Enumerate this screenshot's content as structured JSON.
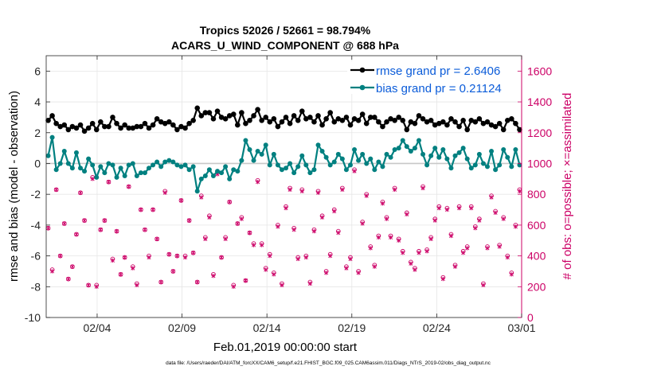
{
  "chart_data": {
    "type": "line",
    "title_line1": "Tropics 52026 / 52661 = 98.794%",
    "title_line2": "ACARS_U_WIND_COMPONENT @ 688 hPa",
    "xlabel": "Feb.01,2019 00:00:00 start",
    "ylabel_left": "rmse and bias (model - observation)",
    "ylabel_right": "# of obs: o=possible; ×=assimilated",
    "footer": "data file: /Users/raeder/DAI/ATM_forcXX/CAM6_setup/f.e21.FHIST_BGC.f09_025.CAM6assim.011/Diags_NTrS_2019-02/obs_diag_output.nc",
    "x_ticks": [
      "02/04",
      "02/09",
      "02/14",
      "02/19",
      "02/24",
      "03/01"
    ],
    "x_tick_values": [
      4,
      9,
      14,
      19,
      24,
      29
    ],
    "xlim": [
      1,
      29
    ],
    "y_left_ticks": [
      "6",
      "4",
      "2",
      "0",
      "-2",
      "-4",
      "-6",
      "-8",
      "-10"
    ],
    "y_left_tick_values": [
      6,
      4,
      2,
      0,
      -2,
      -4,
      -6,
      -8,
      -10
    ],
    "ylim_left": [
      -10,
      7
    ],
    "y_right_ticks": [
      "1600",
      "1400",
      "1200",
      "1000",
      "800",
      "600",
      "400",
      "200",
      "0"
    ],
    "y_right_tick_values": [
      1600,
      1400,
      1200,
      1000,
      800,
      600,
      400,
      200,
      0
    ],
    "ylim_right": [
      0,
      1700
    ],
    "legend": [
      {
        "name": "rmse grand pr = 2.6406",
        "color": "#000000"
      },
      {
        "name": "bias grand pr = 0.21124",
        "color": "#008080"
      }
    ],
    "series": [
      {
        "name": "rmse",
        "color": "#000000",
        "values": [
          2.8,
          3.1,
          2.6,
          2.4,
          2.5,
          2.2,
          2.4,
          2.3,
          2.5,
          2.1,
          2.3,
          2.6,
          2.2,
          2.7,
          2.4,
          2.4,
          3.0,
          2.6,
          2.3,
          2.5,
          2.3,
          2.3,
          2.4,
          2.4,
          2.6,
          2.3,
          2.5,
          2.9,
          2.7,
          2.6,
          2.7,
          2.5,
          2.2,
          2.4,
          2.3,
          2.6,
          2.8,
          3.6,
          3.1,
          3.3,
          3.3,
          2.9,
          3.4,
          3.0,
          2.9,
          3.1,
          3.2,
          2.5,
          3.3,
          2.6,
          2.8,
          3.1,
          3.5,
          2.8,
          3.0,
          2.7,
          2.9,
          2.4,
          2.7,
          3.0,
          2.6,
          3.1,
          2.8,
          3.4,
          2.9,
          3.0,
          2.7,
          3.1,
          2.5,
          2.9,
          3.3,
          2.7,
          2.9,
          2.8,
          3.0,
          2.5,
          2.9,
          2.8,
          3.2,
          2.6,
          3.0,
          3.0,
          2.7,
          2.4,
          2.7,
          2.9,
          2.8,
          3.0,
          2.8,
          2.2,
          2.7,
          2.6,
          3.1,
          2.9,
          2.7,
          2.8,
          2.5,
          2.6,
          2.7,
          2.5,
          2.9,
          2.7,
          2.4,
          2.8,
          2.2,
          2.8,
          2.7,
          2.9,
          2.6,
          2.7,
          2.5,
          2.4,
          2.6,
          2.2,
          2.8,
          2.9,
          2.6,
          2.2
        ]
      },
      {
        "name": "bias",
        "color": "#008080",
        "values": [
          0.5,
          1.7,
          -0.4,
          0.0,
          0.8,
          0.0,
          -0.3,
          0.7,
          -0.3,
          -0.5,
          0.3,
          -0.1,
          -0.9,
          -0.2,
          -0.6,
          0.0,
          -0.1,
          -0.9,
          -0.3,
          -0.8,
          -0.1,
          0.0,
          -0.8,
          -0.6,
          -0.6,
          -0.3,
          -0.1,
          0.1,
          -0.2,
          0.1,
          0.2,
          0.1,
          -0.1,
          -0.2,
          -0.1,
          -0.4,
          -0.2,
          -1.8,
          -1.0,
          -0.8,
          -0.4,
          -0.8,
          -0.5,
          -0.6,
          -0.2,
          -1.0,
          -0.4,
          -0.5,
          0.2,
          1.5,
          0.9,
          0.2,
          0.8,
          0.6,
          1.2,
          -0.1,
          0.6,
          -0.1,
          -0.4,
          -0.3,
          0.0,
          -0.6,
          -0.2,
          0.5,
          -0.1,
          -0.6,
          -0.4,
          1.2,
          0.8,
          0.4,
          -0.1,
          0.1,
          0.6,
          0.3,
          -0.4,
          -0.1,
          0.9,
          0.2,
          0.6,
          0.0,
          0.3,
          -0.4,
          0.1,
          -0.2,
          0.6,
          0.4,
          0.9,
          1.0,
          1.5,
          1.1,
          0.8,
          1.0,
          1.5,
          0.6,
          -0.1,
          0.5,
          1.0,
          0.4,
          0.9,
          0.3,
          -0.3,
          0.5,
          0.7,
          1.0,
          0.3,
          -0.3,
          -0.1,
          0.6,
          0.0,
          -0.2,
          0.8,
          -0.4,
          -0.1,
          0.9,
          0.4,
          -0.2,
          0.9,
          -0.1
        ]
      }
    ],
    "obs_possible": [
      580,
      310,
      830,
      400,
      610,
      250,
      330,
      540,
      810,
      630,
      210,
      910,
      210,
      570,
      630,
      880,
      380,
      560,
      280,
      390,
      850,
      330,
      220,
      700,
      570,
      400,
      700,
      510,
      230,
      820,
      410,
      300,
      400,
      760,
      400,
      630,
      420,
      230,
      790,
      520,
      660,
      280,
      940,
      390,
      520,
      750,
      210,
      610,
      650,
      240,
      550,
      480,
      890,
      480,
      320,
      410,
      290,
      600,
      220,
      720,
      840,
      580,
      390,
      830,
      400,
      230,
      570,
      820,
      660,
      300,
      410,
      700,
      560,
      840,
      330,
      390,
      960,
      300,
      620,
      800,
      460,
      340,
      530,
      750,
      650,
      530,
      840,
      510,
      430,
      680,
      360,
      320,
      430,
      850,
      440,
      520,
      640,
      720,
      260,
      710,
      540,
      340,
      720,
      430,
      460,
      720,
      590,
      640,
      220,
      460,
      790,
      690,
      470,
      650,
      400,
      290,
      600,
      830
    ],
    "obs_assimilated": [
      580,
      300,
      830,
      400,
      610,
      250,
      330,
      540,
      810,
      630,
      210,
      900,
      200,
      570,
      630,
      880,
      370,
      560,
      280,
      390,
      850,
      320,
      210,
      700,
      570,
      390,
      700,
      510,
      230,
      810,
      410,
      300,
      400,
      760,
      390,
      630,
      420,
      230,
      780,
      510,
      650,
      270,
      930,
      390,
      510,
      750,
      200,
      610,
      640,
      240,
      550,
      470,
      880,
      470,
      310,
      400,
      280,
      590,
      210,
      710,
      830,
      570,
      380,
      820,
      390,
      220,
      560,
      810,
      650,
      290,
      400,
      690,
      550,
      830,
      320,
      380,
      950,
      290,
      610,
      790,
      450,
      330,
      520,
      740,
      640,
      520,
      830,
      500,
      420,
      670,
      350,
      310,
      420,
      840,
      430,
      510,
      630,
      710,
      250,
      700,
      530,
      330,
      710,
      420,
      450,
      710,
      580,
      630,
      210,
      450,
      780,
      680,
      460,
      640,
      390,
      280,
      590,
      820
    ]
  }
}
